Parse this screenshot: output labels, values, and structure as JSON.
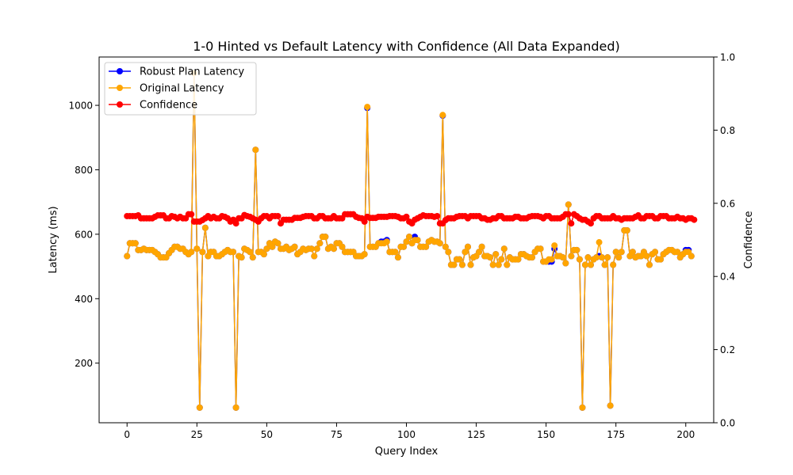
{
  "chart_data": {
    "type": "line",
    "title": "1-0 Hinted vs Default Latency with Confidence (All Data Expanded)",
    "xlabel": "Query Index",
    "ylabel": "Latency (ms)",
    "y2label": "Confidence",
    "xlim": [
      -10,
      210
    ],
    "ylim": [
      15,
      1150
    ],
    "y2lim": [
      0,
      1.0
    ],
    "x_ticks": [
      0,
      25,
      50,
      75,
      100,
      125,
      150,
      175,
      200
    ],
    "y_ticks": [
      200,
      400,
      600,
      800,
      1000
    ],
    "y2_ticks": [
      0.0,
      0.2,
      0.4,
      0.6,
      0.8,
      1.0
    ],
    "legend_position": "top-left",
    "grid": false,
    "colors": {
      "robust": "#0000ff",
      "original": "#ffa500",
      "confidence": "#ff0000"
    },
    "series": [
      {
        "name": "Robust Plan Latency",
        "axis": "left",
        "values": [
          532,
          572,
          572,
          572,
          551,
          551,
          555,
          551,
          551,
          551,
          545,
          538,
          528,
          528,
          528,
          541,
          551,
          561,
          561,
          555,
          555,
          545,
          538,
          545,
          1100,
          555,
          62,
          545,
          620,
          532,
          545,
          545,
          532,
          532,
          538,
          545,
          551,
          545,
          545,
          62,
          532,
          528,
          555,
          551,
          545,
          528,
          862,
          545,
          545,
          538,
          555,
          572,
          561,
          577,
          572,
          555,
          555,
          561,
          551,
          555,
          561,
          538,
          545,
          555,
          551,
          555,
          555,
          532,
          555,
          572,
          592,
          592,
          555,
          561,
          555,
          572,
          572,
          561,
          545,
          545,
          545,
          545,
          532,
          532,
          532,
          538,
          992,
          561,
          561,
          561,
          572,
          577,
          577,
          582,
          545,
          545,
          545,
          528,
          561,
          561,
          577,
          592,
          572,
          592,
          582,
          561,
          561,
          561,
          577,
          582,
          577,
          577,
          572,
          968,
          561,
          545,
          505,
          505,
          522,
          522,
          505,
          545,
          561,
          505,
          528,
          532,
          545,
          561,
          532,
          532,
          528,
          505,
          538,
          505,
          522,
          555,
          505,
          528,
          522,
          522,
          522,
          538,
          538,
          532,
          528,
          528,
          545,
          555,
          555,
          515,
          515,
          515,
          515,
          555,
          532,
          532,
          528,
          510,
          692,
          532,
          551,
          551,
          522,
          62,
          505,
          528,
          505,
          522,
          528,
          532,
          528,
          505,
          528,
          68,
          505,
          545,
          528,
          545,
          612,
          612,
          532,
          545,
          528,
          532,
          532,
          545,
          532,
          505,
          538,
          545,
          522,
          522,
          538,
          545,
          551,
          551,
          545,
          545,
          528,
          538,
          551,
          551,
          532
        ]
      },
      {
        "name": "Original Latency",
        "axis": "left",
        "values": [
          532,
          572,
          572,
          572,
          551,
          551,
          555,
          551,
          551,
          551,
          545,
          538,
          528,
          528,
          528,
          541,
          551,
          561,
          561,
          555,
          555,
          545,
          538,
          545,
          1100,
          555,
          62,
          545,
          620,
          532,
          545,
          545,
          532,
          532,
          538,
          545,
          551,
          545,
          545,
          62,
          532,
          528,
          555,
          551,
          545,
          528,
          862,
          545,
          545,
          538,
          555,
          572,
          561,
          577,
          572,
          555,
          555,
          561,
          551,
          555,
          561,
          538,
          545,
          555,
          551,
          555,
          555,
          532,
          555,
          572,
          592,
          592,
          555,
          561,
          555,
          572,
          572,
          561,
          545,
          545,
          545,
          545,
          532,
          532,
          532,
          538,
          995,
          561,
          561,
          561,
          572,
          572,
          572,
          577,
          545,
          545,
          545,
          528,
          561,
          561,
          577,
          592,
          572,
          582,
          582,
          561,
          561,
          561,
          577,
          582,
          577,
          577,
          572,
          970,
          561,
          545,
          505,
          505,
          522,
          522,
          505,
          545,
          561,
          505,
          528,
          532,
          545,
          561,
          532,
          532,
          528,
          505,
          538,
          505,
          522,
          555,
          505,
          528,
          522,
          522,
          522,
          538,
          538,
          532,
          528,
          528,
          545,
          555,
          555,
          515,
          515,
          522,
          522,
          565,
          532,
          532,
          528,
          510,
          692,
          532,
          551,
          551,
          522,
          62,
          505,
          528,
          505,
          522,
          528,
          575,
          528,
          505,
          528,
          68,
          505,
          545,
          528,
          545,
          612,
          612,
          532,
          545,
          528,
          532,
          532,
          545,
          532,
          505,
          538,
          545,
          522,
          522,
          538,
          545,
          551,
          551,
          545,
          545,
          528,
          538,
          545,
          545,
          532
        ]
      },
      {
        "name": "Confidence",
        "axis": "right",
        "values": [
          0.565,
          0.565,
          0.565,
          0.565,
          0.567,
          0.559,
          0.559,
          0.559,
          0.559,
          0.559,
          0.563,
          0.567,
          0.567,
          0.567,
          0.559,
          0.559,
          0.565,
          0.563,
          0.559,
          0.563,
          0.559,
          0.559,
          0.57,
          0.57,
          0.55,
          0.55,
          0.55,
          0.554,
          0.559,
          0.565,
          0.559,
          0.563,
          0.559,
          0.559,
          0.565,
          0.563,
          0.559,
          0.55,
          0.555,
          0.545,
          0.559,
          0.559,
          0.568,
          0.565,
          0.563,
          0.559,
          0.555,
          0.55,
          0.559,
          0.565,
          0.565,
          0.559,
          0.565,
          0.565,
          0.565,
          0.545,
          0.555,
          0.555,
          0.555,
          0.555,
          0.56,
          0.56,
          0.56,
          0.563,
          0.565,
          0.565,
          0.565,
          0.559,
          0.559,
          0.565,
          0.565,
          0.559,
          0.559,
          0.559,
          0.565,
          0.559,
          0.559,
          0.559,
          0.57,
          0.57,
          0.57,
          0.57,
          0.563,
          0.56,
          0.559,
          0.55,
          0.563,
          0.56,
          0.56,
          0.56,
          0.563,
          0.563,
          0.563,
          0.563,
          0.565,
          0.565,
          0.565,
          0.563,
          0.559,
          0.559,
          0.563,
          0.55,
          0.545,
          0.555,
          0.559,
          0.563,
          0.567,
          0.565,
          0.565,
          0.565,
          0.563,
          0.565,
          0.545,
          0.545,
          0.554,
          0.559,
          0.559,
          0.559,
          0.563,
          0.565,
          0.565,
          0.565,
          0.559,
          0.565,
          0.565,
          0.565,
          0.565,
          0.559,
          0.559,
          0.555,
          0.555,
          0.559,
          0.559,
          0.565,
          0.565,
          0.559,
          0.559,
          0.559,
          0.559,
          0.563,
          0.563,
          0.559,
          0.559,
          0.559,
          0.563,
          0.565,
          0.565,
          0.565,
          0.563,
          0.559,
          0.565,
          0.565,
          0.559,
          0.559,
          0.559,
          0.559,
          0.563,
          0.57,
          0.57,
          0.545,
          0.57,
          0.565,
          0.559,
          0.555,
          0.555,
          0.55,
          0.545,
          0.559,
          0.565,
          0.565,
          0.559,
          0.559,
          0.559,
          0.559,
          0.565,
          0.559,
          0.559,
          0.555,
          0.559,
          0.559,
          0.559,
          0.559,
          0.563,
          0.567,
          0.559,
          0.559,
          0.565,
          0.565,
          0.565,
          0.559,
          0.559,
          0.565,
          0.565,
          0.565,
          0.559,
          0.559,
          0.559,
          0.563,
          0.559,
          0.559,
          0.555,
          0.559,
          0.559,
          0.555
        ]
      }
    ]
  }
}
